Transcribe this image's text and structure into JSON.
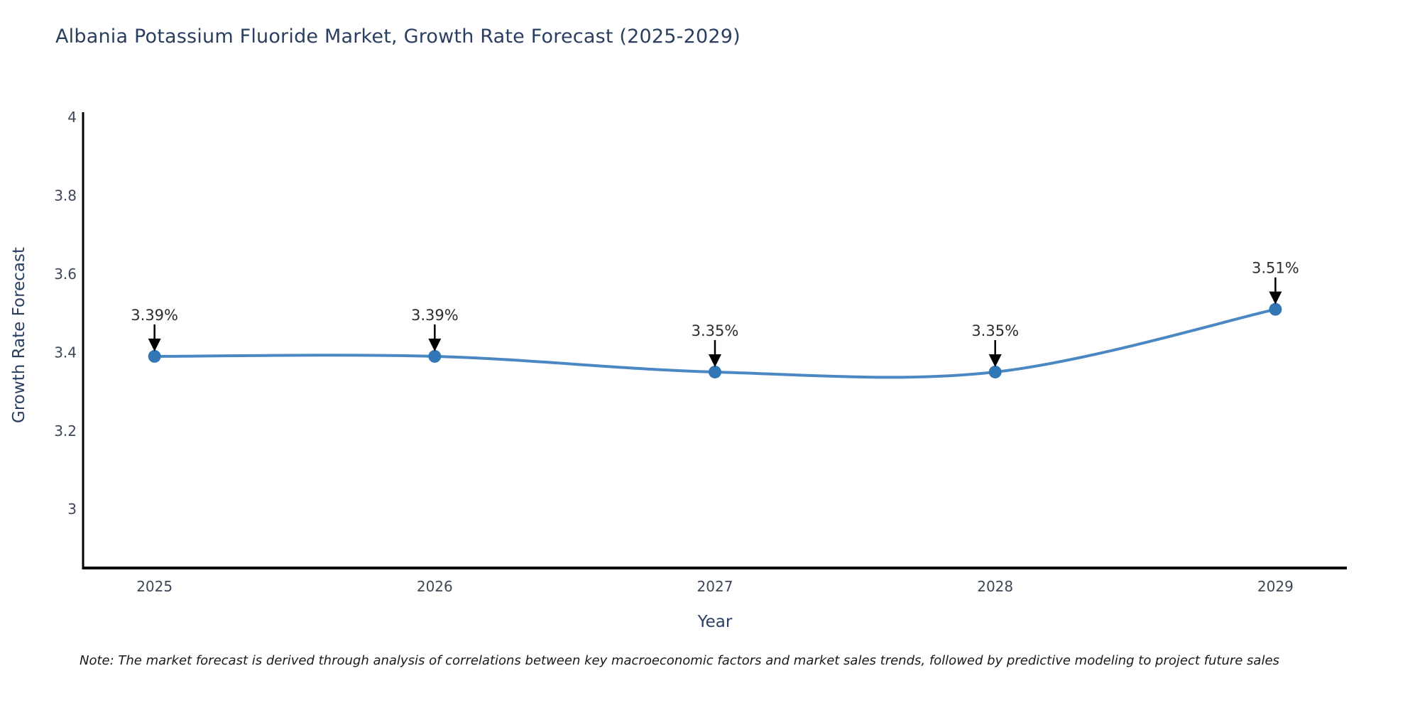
{
  "note": "Note: The market forecast is derived through analysis of correlations between key macroeconomic factors and market sales trends, followed by predictive modeling to project future sales",
  "colors": {
    "background": "#ffffff",
    "title": "#2a3f5f",
    "axis_title": "#2a3f5f",
    "tick_label": "#3d4758",
    "spine": "#000000",
    "line": "#4182c0",
    "marker": "#3277b5",
    "annotation_text": "#2d2d2d",
    "annotation_arrow": "#000000",
    "note": "#1a1a1a"
  },
  "chart_data": {
    "type": "line",
    "title": "Albania Potassium Fluoride Market, Growth Rate Forecast (2025-2029)",
    "xlabel": "Year",
    "ylabel": "Growth Rate Forecast",
    "categories": [
      "2025",
      "2026",
      "2027",
      "2028",
      "2029"
    ],
    "x": [
      2025,
      2026,
      2027,
      2028,
      2029
    ],
    "series": [
      {
        "name": "Growth Rate Forecast",
        "values": [
          3.39,
          3.39,
          3.35,
          3.35,
          3.51
        ]
      }
    ],
    "point_labels": [
      "3.39%",
      "3.39%",
      "3.35%",
      "3.35%",
      "3.51%"
    ],
    "yticks": [
      3,
      3.2,
      3.4,
      3.6,
      3.8,
      4
    ],
    "ytick_labels": [
      "3",
      "3.2",
      "3.4",
      "3.6",
      "3.8",
      "4"
    ],
    "xlim": [
      2024.745,
      2029.255
    ],
    "ylim": [
      2.85,
      4.013
    ],
    "grid": false,
    "legend": false,
    "line_width": 4,
    "marker_size": 9
  }
}
